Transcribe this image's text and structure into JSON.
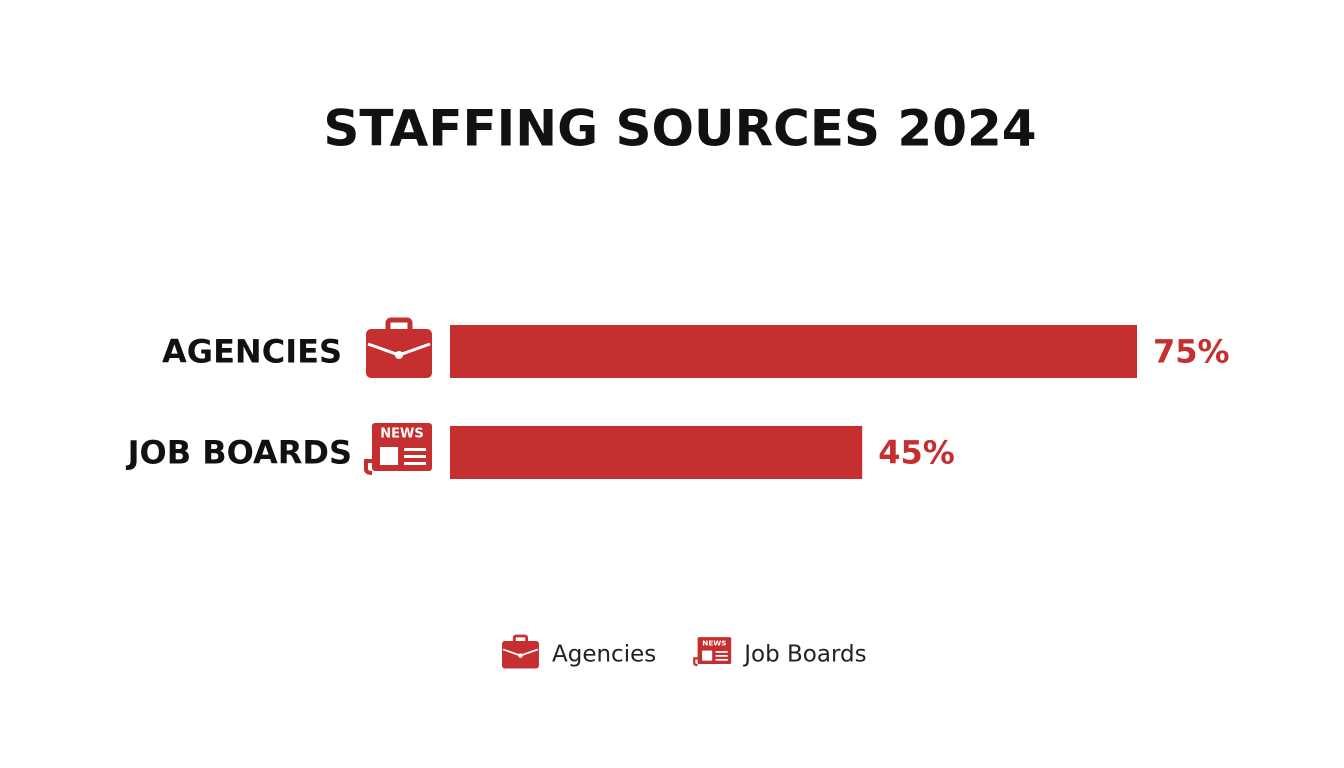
{
  "chart_data": {
    "type": "hbar",
    "title": "STAFFING SOURCES 2024",
    "categories": [
      "AGENCIES",
      "JOB BOARDS"
    ],
    "series": [
      {
        "name": "Agencies",
        "color": "#c62f2f",
        "values": [
          75,
          null
        ],
        "value_labels": [
          "75%",
          null
        ]
      },
      {
        "name": "Job Boards",
        "color": "#c62f2f",
        "values": [
          null,
          45
        ],
        "value_labels": [
          null,
          "45%"
        ]
      }
    ],
    "icon_label": "NEWS"
  }
}
